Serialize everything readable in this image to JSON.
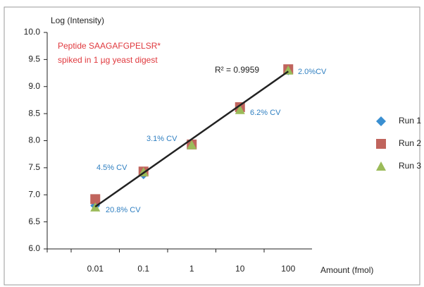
{
  "chart_data": {
    "type": "scatter",
    "x_label": "Amount (fmol)",
    "y_label": "Log (Intensity)",
    "categories": [
      "0.01",
      "0.1",
      "1",
      "10",
      "100"
    ],
    "series": [
      {
        "name": "Run 1",
        "color": "#3a8fd1",
        "marker": "diamond",
        "values": [
          6.8,
          7.38,
          7.93,
          8.6,
          9.3
        ]
      },
      {
        "name": "Run 2",
        "color": "#c0645d",
        "marker": "square",
        "values": [
          6.92,
          7.43,
          7.93,
          8.62,
          9.32
        ]
      },
      {
        "name": "Run 3",
        "color": "#9bbb59",
        "marker": "triangle",
        "values": [
          6.77,
          7.42,
          7.92,
          8.57,
          9.3
        ]
      }
    ],
    "trendline": {
      "color": "#222222",
      "values": [
        6.78,
        9.28
      ]
    },
    "r_squared_label": "R² = 0.9959",
    "note": [
      "Peptide SAAGAFGPELSR*",
      "spiked in 1 µg yeast digest"
    ],
    "cv_labels": [
      "20.8% CV",
      "4.5% CV",
      "3.1% CV",
      "6.2% CV",
      "2.0%CV"
    ],
    "ylim": [
      6,
      10
    ],
    "yticks": [
      {
        "value": 6,
        "label": "6.0"
      },
      {
        "value": 6.5,
        "label": "6.5"
      },
      {
        "value": 7,
        "label": "7.0"
      },
      {
        "value": 7.5,
        "label": "7.5"
      },
      {
        "value": 8,
        "label": "8.0"
      },
      {
        "value": 8.5,
        "label": "8.5"
      },
      {
        "value": 9,
        "label": "9.0"
      },
      {
        "value": 9.5,
        "label": "9.5"
      },
      {
        "value": 10,
        "label": "10.0"
      }
    ],
    "legend": "right"
  }
}
